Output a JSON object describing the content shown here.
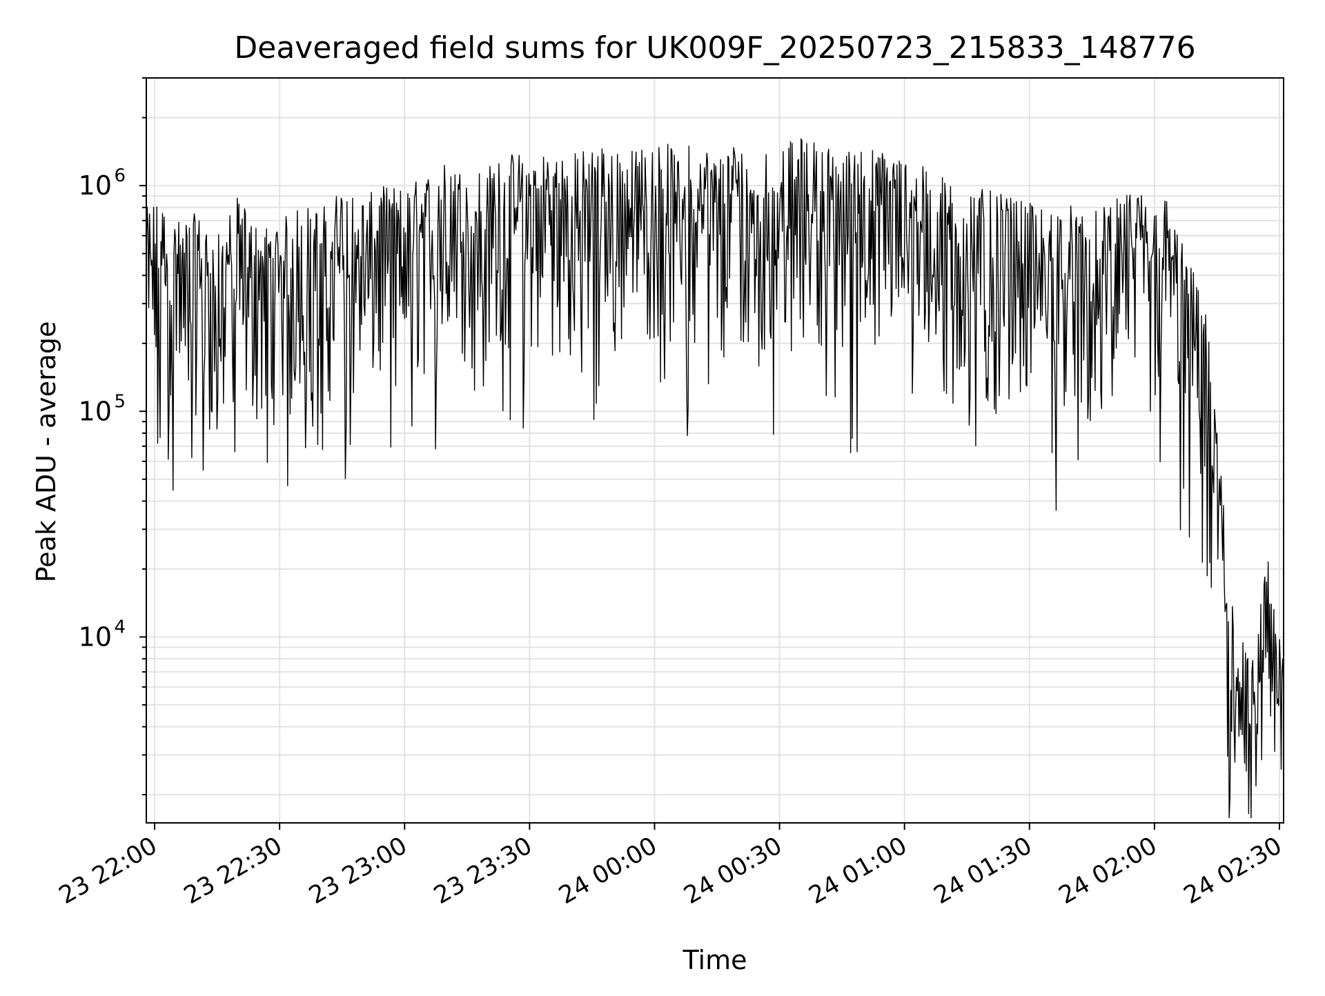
{
  "chart_data": {
    "type": "line",
    "title": "Deaveraged field sums for UK009F_20250723_215833_148776",
    "xlabel": "Time",
    "ylabel": "Peak ADU - average",
    "yscale": "log",
    "ylim": [
      1500,
      3000000
    ],
    "xlim": [
      "2025-07-23 21:58:00",
      "2025-07-24 02:31:00"
    ],
    "grid": true,
    "x_tick_labels": [
      "23 22:00",
      "23 22:30",
      "23 23:00",
      "23 23:30",
      "24 00:00",
      "24 00:30",
      "24 01:00",
      "24 01:30",
      "24 02:00",
      "24 02:30"
    ],
    "x_tick_times": [
      "2025-07-23 22:00:00",
      "2025-07-23 22:30:00",
      "2025-07-23 23:00:00",
      "2025-07-23 23:30:00",
      "2025-07-24 00:00:00",
      "2025-07-24 00:30:00",
      "2025-07-24 01:00:00",
      "2025-07-24 01:30:00",
      "2025-07-24 02:00:00",
      "2025-07-24 02:30:00"
    ],
    "y_major_ticks": [
      10000,
      100000,
      1000000
    ],
    "y_tick_labels": [
      {
        "base": "10",
        "exp": "4"
      },
      {
        "base": "10",
        "exp": "5"
      },
      {
        "base": "10",
        "exp": "6"
      }
    ],
    "line_color": "#000000",
    "series": [
      {
        "x": [
          "2025-07-23 21:58:00",
          "2025-07-23 22:00:00",
          "2025-07-23 22:05:00",
          "2025-07-23 22:10:00",
          "2025-07-23 22:15:00",
          "2025-07-23 22:20:00",
          "2025-07-23 22:25:00",
          "2025-07-23 22:30:00",
          "2025-07-23 22:35:00",
          "2025-07-23 22:40:00",
          "2025-07-23 22:45:00",
          "2025-07-23 22:50:00",
          "2025-07-23 22:55:00",
          "2025-07-23 23:00:00",
          "2025-07-23 23:05:00",
          "2025-07-23 23:10:00",
          "2025-07-23 23:15:00",
          "2025-07-23 23:20:00",
          "2025-07-23 23:25:00",
          "2025-07-23 23:30:00",
          "2025-07-23 23:35:00",
          "2025-07-23 23:40:00",
          "2025-07-23 23:45:00",
          "2025-07-23 23:50:00",
          "2025-07-23 23:55:00",
          "2025-07-24 00:00:00",
          "2025-07-24 00:05:00",
          "2025-07-24 00:10:00",
          "2025-07-24 00:15:00",
          "2025-07-24 00:20:00",
          "2025-07-24 00:25:00",
          "2025-07-24 00:30:00",
          "2025-07-24 00:35:00",
          "2025-07-24 00:40:00",
          "2025-07-24 00:45:00",
          "2025-07-24 00:50:00",
          "2025-07-24 00:55:00",
          "2025-07-24 01:00:00",
          "2025-07-24 01:05:00",
          "2025-07-24 01:10:00",
          "2025-07-24 01:15:00",
          "2025-07-24 01:20:00",
          "2025-07-24 01:25:00",
          "2025-07-24 01:30:00",
          "2025-07-24 01:35:00",
          "2025-07-24 01:40:00",
          "2025-07-24 01:45:00",
          "2025-07-24 01:50:00",
          "2025-07-24 01:55:00",
          "2025-07-24 02:00:00",
          "2025-07-24 02:03:00",
          "2025-07-24 02:06:00",
          "2025-07-24 02:09:00",
          "2025-07-24 02:12:00",
          "2025-07-24 02:14:00",
          "2025-07-24 02:16:00",
          "2025-07-24 02:18:00",
          "2025-07-24 02:20:00",
          "2025-07-24 02:22:00",
          "2025-07-24 02:24:00",
          "2025-07-24 02:26:00",
          "2025-07-24 02:27:00",
          "2025-07-24 02:28:00",
          "2025-07-24 02:30:00",
          "2025-07-24 02:31:00"
        ],
        "y": [
          400000,
          450000,
          350000,
          380000,
          300000,
          450000,
          330000,
          350000,
          420000,
          400000,
          500000,
          450000,
          500000,
          500000,
          560000,
          650000,
          580000,
          620000,
          700000,
          720000,
          750000,
          700000,
          760000,
          800000,
          720000,
          820000,
          750000,
          780000,
          720000,
          800000,
          740000,
          760000,
          820000,
          780000,
          720000,
          760000,
          720000,
          700000,
          600000,
          550000,
          500000,
          480000,
          450000,
          420000,
          400000,
          420000,
          380000,
          430000,
          480000,
          500000,
          450000,
          300000,
          220000,
          150000,
          80000,
          30000,
          10000,
          6000,
          4500,
          4000,
          9000,
          12000,
          9000,
          5000,
          4000
        ]
      }
    ]
  }
}
